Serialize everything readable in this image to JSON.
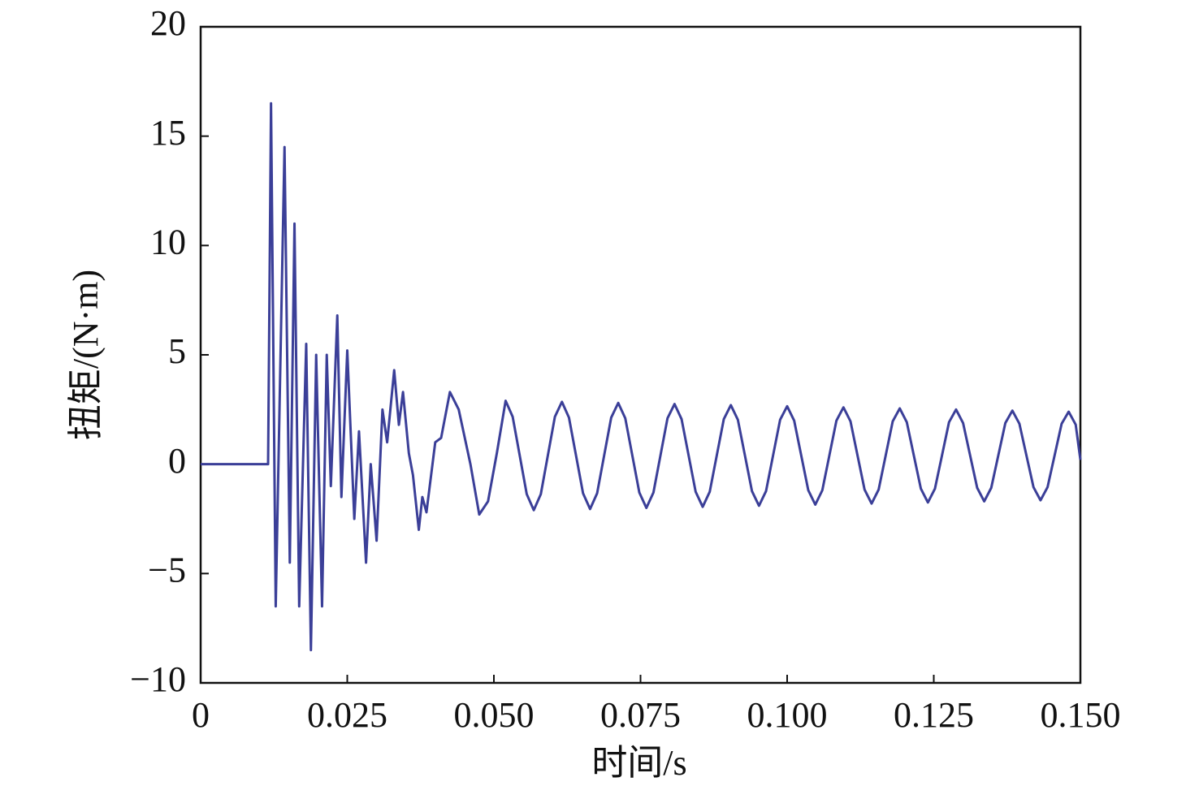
{
  "chart_data": {
    "type": "line",
    "xlabel": "时间/s",
    "ylabel": "扭矩/(N·m)",
    "color": "#3b3f98",
    "xlim": [
      0,
      0.15
    ],
    "ylim": [
      -10,
      20
    ],
    "xticks": [
      0,
      0.025,
      {
        "value": 0.05,
        "label": "0.050"
      },
      0.075,
      {
        "value": 0.1,
        "label": "0.100"
      },
      0.125,
      {
        "value": 0.15,
        "label": "0.150"
      }
    ],
    "yticks": [
      {
        "value": -10,
        "label": "−10"
      },
      {
        "value": -5,
        "label": "−5"
      },
      0,
      5,
      10,
      15,
      20
    ],
    "x": [
      0,
      0.0115,
      0.012,
      0.0128,
      0.0143,
      0.0152,
      0.016,
      0.0168,
      0.018,
      0.0188,
      0.0197,
      0.0207,
      0.0215,
      0.0222,
      0.0233,
      0.024,
      0.025,
      0.0262,
      0.027,
      0.0282,
      0.029,
      0.03,
      0.031,
      0.0318,
      0.033,
      0.0338,
      0.0345,
      0.0355,
      0.0362,
      0.0372,
      0.0378,
      0.0385,
      0.04,
      0.041,
      0.0425,
      0.044,
      0.046,
      0.0475,
      0.049,
      0.0505,
      0.052,
      0.0532,
      0.0544,
      0.0556,
      0.0568,
      0.058,
      0.0592,
      0.0604,
      0.0616,
      0.0628,
      0.064,
      0.0652,
      0.0664,
      0.0676,
      0.0688,
      0.07,
      0.0712,
      0.0724,
      0.0736,
      0.0748,
      0.076,
      0.0772,
      0.0784,
      0.0796,
      0.0808,
      0.082,
      0.0832,
      0.0844,
      0.0856,
      0.0868,
      0.088,
      0.0892,
      0.0904,
      0.0916,
      0.0928,
      0.094,
      0.0952,
      0.0964,
      0.0976,
      0.0988,
      0.1,
      0.1012,
      0.1024,
      0.1036,
      0.1048,
      0.106,
      0.1072,
      0.1084,
      0.1096,
      0.1108,
      0.112,
      0.1132,
      0.1144,
      0.1156,
      0.1168,
      0.118,
      0.1192,
      0.1204,
      0.1216,
      0.1228,
      0.124,
      0.1252,
      0.1264,
      0.1276,
      0.1288,
      0.13,
      0.1312,
      0.1324,
      0.1336,
      0.1348,
      0.136,
      0.1372,
      0.1384,
      0.1396,
      0.1408,
      0.142,
      0.1432,
      0.1444,
      0.1456,
      0.1468,
      0.148,
      0.1492,
      0.15
    ],
    "values": [
      0,
      0,
      16.5,
      -6.5,
      14.5,
      -4.5,
      11,
      -6.5,
      5.5,
      -8.5,
      5,
      -6.5,
      5,
      -1,
      6.8,
      -1.5,
      5.2,
      -2.5,
      1.5,
      -4.5,
      0,
      -3.5,
      2.5,
      1,
      4.3,
      1.8,
      3.3,
      0.5,
      -0.5,
      -3,
      -1.5,
      -2.2,
      1,
      1.2,
      3.3,
      2.5,
      0,
      -2.3,
      -1.7,
      0.5,
      2.9,
      2.17,
      0.4,
      -1.37,
      -2.1,
      -1.37,
      0.4,
      2.17,
      2.85,
      2.13,
      0.4,
      -1.33,
      -2.05,
      -1.33,
      0.4,
      2.13,
      2.8,
      2.1,
      0.4,
      -1.3,
      -2.0,
      -1.3,
      0.4,
      2.1,
      2.75,
      2.06,
      0.4,
      -1.26,
      -1.95,
      -1.26,
      0.4,
      2.06,
      2.7,
      2.03,
      0.4,
      -1.23,
      -1.9,
      -1.23,
      0.4,
      2.03,
      2.65,
      1.99,
      0.4,
      -1.19,
      -1.85,
      -1.19,
      0.4,
      1.99,
      2.6,
      1.96,
      0.4,
      -1.16,
      -1.8,
      -1.16,
      0.4,
      1.96,
      2.55,
      1.92,
      0.4,
      -1.12,
      -1.75,
      -1.12,
      0.4,
      1.92,
      2.5,
      1.88,
      0.4,
      -1.08,
      -1.7,
      -1.08,
      0.4,
      1.88,
      2.45,
      1.85,
      0.4,
      -1.05,
      -1.65,
      -1.05,
      0.4,
      1.85,
      2.4,
      1.81,
      0.2
    ]
  }
}
